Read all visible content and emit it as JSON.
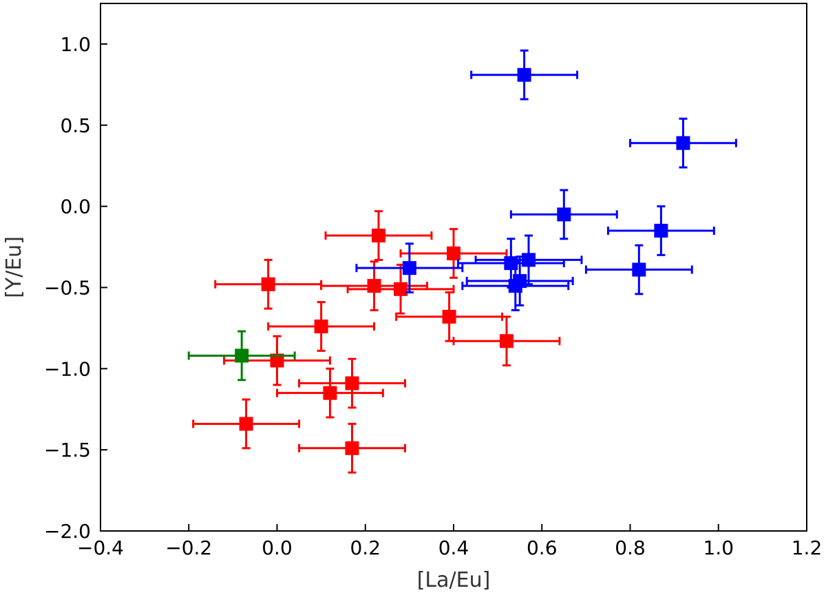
{
  "chart_data": {
    "type": "scatter",
    "title": "",
    "xlabel": "[La/Eu]",
    "ylabel": "[Y/Eu]",
    "xlim": [
      -0.4,
      1.2
    ],
    "ylim": [
      -2.0,
      1.25
    ],
    "xticks": [
      -0.4,
      -0.2,
      0.0,
      0.2,
      0.4,
      0.6,
      0.8,
      1.0,
      1.2
    ],
    "xtick_labels": [
      "−0.4",
      "−0.2",
      "0.0",
      "0.2",
      "0.4",
      "0.6",
      "0.8",
      "1.0",
      "1.2"
    ],
    "yticks": [
      -2.0,
      -1.5,
      -1.0,
      -0.5,
      0.0,
      0.5,
      1.0
    ],
    "ytick_labels": [
      "−2.0",
      "−1.5",
      "−1.0",
      "−0.5",
      "0.0",
      "0.5",
      "1.0"
    ],
    "grid": false,
    "marker": "square",
    "series": [
      {
        "color": "#ff0000",
        "points": [
          {
            "x": 0.23,
            "y": -0.18,
            "xerr": 0.12,
            "yerr": 0.15
          },
          {
            "x": 0.4,
            "y": -0.29,
            "xerr": 0.12,
            "yerr": 0.15
          },
          {
            "x": -0.02,
            "y": -0.48,
            "xerr": 0.12,
            "yerr": 0.15
          },
          {
            "x": 0.22,
            "y": -0.49,
            "xerr": 0.12,
            "yerr": 0.15
          },
          {
            "x": 0.28,
            "y": -0.51,
            "xerr": 0.12,
            "yerr": 0.15
          },
          {
            "x": 0.39,
            "y": -0.68,
            "xerr": 0.12,
            "yerr": 0.15
          },
          {
            "x": 0.1,
            "y": -0.74,
            "xerr": 0.12,
            "yerr": 0.15
          },
          {
            "x": 0.52,
            "y": -0.83,
            "xerr": 0.12,
            "yerr": 0.15
          },
          {
            "x": 0.0,
            "y": -0.95,
            "xerr": 0.12,
            "yerr": 0.15
          },
          {
            "x": 0.17,
            "y": -1.09,
            "xerr": 0.12,
            "yerr": 0.15
          },
          {
            "x": 0.12,
            "y": -1.15,
            "xerr": 0.12,
            "yerr": 0.15
          },
          {
            "x": -0.07,
            "y": -1.34,
            "xerr": 0.12,
            "yerr": 0.15
          },
          {
            "x": 0.17,
            "y": -1.49,
            "xerr": 0.12,
            "yerr": 0.15
          }
        ]
      },
      {
        "color": "#0000ff",
        "points": [
          {
            "x": 0.56,
            "y": 0.81,
            "xerr": 0.12,
            "yerr": 0.15
          },
          {
            "x": 0.92,
            "y": 0.39,
            "xerr": 0.12,
            "yerr": 0.15
          },
          {
            "x": 0.65,
            "y": -0.05,
            "xerr": 0.12,
            "yerr": 0.15
          },
          {
            "x": 0.87,
            "y": -0.15,
            "xerr": 0.12,
            "yerr": 0.15
          },
          {
            "x": 0.57,
            "y": -0.33,
            "xerr": 0.12,
            "yerr": 0.15
          },
          {
            "x": 0.53,
            "y": -0.35,
            "xerr": 0.12,
            "yerr": 0.15
          },
          {
            "x": 0.3,
            "y": -0.38,
            "xerr": 0.12,
            "yerr": 0.15
          },
          {
            "x": 0.82,
            "y": -0.39,
            "xerr": 0.12,
            "yerr": 0.15
          },
          {
            "x": 0.55,
            "y": -0.46,
            "xerr": 0.12,
            "yerr": 0.15
          },
          {
            "x": 0.54,
            "y": -0.49,
            "xerr": 0.12,
            "yerr": 0.15
          }
        ]
      },
      {
        "color": "#008000",
        "points": [
          {
            "x": -0.08,
            "y": -0.92,
            "xerr": 0.12,
            "yerr": 0.15
          }
        ]
      }
    ]
  }
}
